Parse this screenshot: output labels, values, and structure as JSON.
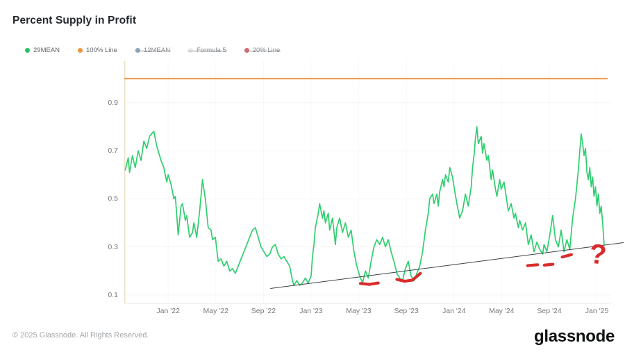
{
  "header": {
    "title": "Percent Supply in Profit"
  },
  "legend": {
    "items": [
      {
        "label": "29MEAN",
        "color": "#27c363",
        "active": true
      },
      {
        "label": "100% Line",
        "color": "#f09440",
        "active": true
      },
      {
        "label": "12MEAN",
        "color": "#92a4bd",
        "active": false
      },
      {
        "label": "Formula 5",
        "color": "#ededed",
        "active": false
      },
      {
        "label": "20% Line",
        "color": "#d46a6e",
        "active": false
      }
    ]
  },
  "footer": {
    "copyright": "© 2025 Glassnode. All Rights Reserved.",
    "brand": "glassnode"
  },
  "colors": {
    "series_green": "#2fce6f",
    "line_orange": "#f09440",
    "annotation_red": "#d92c2c",
    "trendline": "#3c4043",
    "axis_line_beige": "#f2e4c4",
    "grid": "#f4f4f4",
    "axis_bottom": "#e7e7e7"
  },
  "chart_data": {
    "type": "line",
    "title": "Percent Supply in Profit",
    "xlabel": "",
    "ylabel": "",
    "grid": true,
    "legend_position": "top-left",
    "x_axis": {
      "range": [
        2021.693,
        2025.075
      ],
      "ticks": [
        {
          "label": "Jan '22",
          "t": 2022.0
        },
        {
          "label": "May '22",
          "t": 2022.333
        },
        {
          "label": "Sep '22",
          "t": 2022.667
        },
        {
          "label": "Jan '23",
          "t": 2023.0
        },
        {
          "label": "May '23",
          "t": 2023.333
        },
        {
          "label": "Sep '23",
          "t": 2023.667
        },
        {
          "label": "Jan '24",
          "t": 2024.0
        },
        {
          "label": "May '24",
          "t": 2024.333
        },
        {
          "label": "Sep '24",
          "t": 2024.667
        },
        {
          "label": "Jan '25",
          "t": 2025.0
        }
      ]
    },
    "y_axis": {
      "range": [
        0.065,
        1.073
      ],
      "ticks": [
        0.1,
        0.3,
        0.5,
        0.7,
        0.9
      ]
    },
    "series": [
      {
        "name": "29MEAN",
        "color": "#2fce6f",
        "visible": true,
        "points": [
          [
            2021.7,
            0.62
          ],
          [
            2021.72,
            0.67
          ],
          [
            2021.73,
            0.61
          ],
          [
            2021.75,
            0.68
          ],
          [
            2021.77,
            0.63
          ],
          [
            2021.79,
            0.7
          ],
          [
            2021.81,
            0.66
          ],
          [
            2021.83,
            0.74
          ],
          [
            2021.85,
            0.71
          ],
          [
            2021.87,
            0.76
          ],
          [
            2021.89,
            0.775
          ],
          [
            2021.9,
            0.78
          ],
          [
            2021.92,
            0.72
          ],
          [
            2021.94,
            0.68
          ],
          [
            2021.95,
            0.66
          ],
          [
            2021.97,
            0.63
          ],
          [
            2021.99,
            0.57
          ],
          [
            2022.0,
            0.6
          ],
          [
            2022.02,
            0.56
          ],
          [
            2022.04,
            0.5
          ],
          [
            2022.05,
            0.51
          ],
          [
            2022.07,
            0.35
          ],
          [
            2022.09,
            0.47
          ],
          [
            2022.1,
            0.48
          ],
          [
            2022.12,
            0.41
          ],
          [
            2022.13,
            0.43
          ],
          [
            2022.15,
            0.34
          ],
          [
            2022.17,
            0.36
          ],
          [
            2022.18,
            0.4
          ],
          [
            2022.2,
            0.34
          ],
          [
            2022.22,
            0.45
          ],
          [
            2022.24,
            0.58
          ],
          [
            2022.26,
            0.5
          ],
          [
            2022.28,
            0.38
          ],
          [
            2022.3,
            0.37
          ],
          [
            2022.31,
            0.33
          ],
          [
            2022.33,
            0.34
          ],
          [
            2022.35,
            0.24
          ],
          [
            2022.37,
            0.25
          ],
          [
            2022.39,
            0.22
          ],
          [
            2022.41,
            0.24
          ],
          [
            2022.43,
            0.2
          ],
          [
            2022.45,
            0.21
          ],
          [
            2022.47,
            0.19
          ],
          [
            2022.49,
            0.22
          ],
          [
            2022.51,
            0.25
          ],
          [
            2022.53,
            0.28
          ],
          [
            2022.55,
            0.31
          ],
          [
            2022.57,
            0.34
          ],
          [
            2022.59,
            0.37
          ],
          [
            2022.61,
            0.38
          ],
          [
            2022.63,
            0.34
          ],
          [
            2022.65,
            0.3
          ],
          [
            2022.67,
            0.28
          ],
          [
            2022.69,
            0.26
          ],
          [
            2022.71,
            0.27
          ],
          [
            2022.73,
            0.3
          ],
          [
            2022.75,
            0.31
          ],
          [
            2022.77,
            0.27
          ],
          [
            2022.79,
            0.25
          ],
          [
            2022.81,
            0.26
          ],
          [
            2022.83,
            0.24
          ],
          [
            2022.85,
            0.22
          ],
          [
            2022.87,
            0.16
          ],
          [
            2022.88,
            0.14
          ],
          [
            2022.9,
            0.16
          ],
          [
            2022.92,
            0.14
          ],
          [
            2022.94,
            0.15
          ],
          [
            2022.96,
            0.17
          ],
          [
            2022.98,
            0.15
          ],
          [
            2023.0,
            0.18
          ],
          [
            2023.01,
            0.26
          ],
          [
            2023.02,
            0.31
          ],
          [
            2023.03,
            0.38
          ],
          [
            2023.05,
            0.44
          ],
          [
            2023.06,
            0.48
          ],
          [
            2023.08,
            0.42
          ],
          [
            2023.09,
            0.45
          ],
          [
            2023.1,
            0.4
          ],
          [
            2023.12,
            0.44
          ],
          [
            2023.13,
            0.37
          ],
          [
            2023.15,
            0.42
          ],
          [
            2023.17,
            0.31
          ],
          [
            2023.18,
            0.38
          ],
          [
            2023.2,
            0.42
          ],
          [
            2023.22,
            0.36
          ],
          [
            2023.24,
            0.4
          ],
          [
            2023.26,
            0.34
          ],
          [
            2023.28,
            0.37
          ],
          [
            2023.3,
            0.28
          ],
          [
            2023.32,
            0.22
          ],
          [
            2023.34,
            0.18
          ],
          [
            2023.36,
            0.15
          ],
          [
            2023.38,
            0.2
          ],
          [
            2023.4,
            0.17
          ],
          [
            2023.42,
            0.24
          ],
          [
            2023.44,
            0.3
          ],
          [
            2023.46,
            0.33
          ],
          [
            2023.48,
            0.31
          ],
          [
            2023.5,
            0.34
          ],
          [
            2023.52,
            0.3
          ],
          [
            2023.54,
            0.33
          ],
          [
            2023.56,
            0.28
          ],
          [
            2023.58,
            0.24
          ],
          [
            2023.6,
            0.19
          ],
          [
            2023.62,
            0.17
          ],
          [
            2023.64,
            0.16
          ],
          [
            2023.66,
            0.21
          ],
          [
            2023.68,
            0.24
          ],
          [
            2023.7,
            0.18
          ],
          [
            2023.72,
            0.16
          ],
          [
            2023.74,
            0.19
          ],
          [
            2023.76,
            0.22
          ],
          [
            2023.78,
            0.28
          ],
          [
            2023.8,
            0.37
          ],
          [
            2023.82,
            0.44
          ],
          [
            2023.83,
            0.5
          ],
          [
            2023.85,
            0.52
          ],
          [
            2023.86,
            0.48
          ],
          [
            2023.88,
            0.52
          ],
          [
            2023.89,
            0.47
          ],
          [
            2023.9,
            0.53
          ],
          [
            2023.92,
            0.58
          ],
          [
            2023.93,
            0.55
          ],
          [
            2023.94,
            0.6
          ],
          [
            2023.96,
            0.57
          ],
          [
            2023.97,
            0.63
          ],
          [
            2023.99,
            0.59
          ],
          [
            2024.0,
            0.55
          ],
          [
            2024.02,
            0.48
          ],
          [
            2024.04,
            0.42
          ],
          [
            2024.06,
            0.45
          ],
          [
            2024.08,
            0.52
          ],
          [
            2024.1,
            0.47
          ],
          [
            2024.12,
            0.55
          ],
          [
            2024.13,
            0.63
          ],
          [
            2024.14,
            0.68
          ],
          [
            2024.15,
            0.75
          ],
          [
            2024.16,
            0.8
          ],
          [
            2024.17,
            0.73
          ],
          [
            2024.19,
            0.76
          ],
          [
            2024.2,
            0.69
          ],
          [
            2024.21,
            0.73
          ],
          [
            2024.23,
            0.66
          ],
          [
            2024.24,
            0.68
          ],
          [
            2024.26,
            0.58
          ],
          [
            2024.27,
            0.62
          ],
          [
            2024.29,
            0.54
          ],
          [
            2024.3,
            0.51
          ],
          [
            2024.32,
            0.58
          ],
          [
            2024.33,
            0.54
          ],
          [
            2024.35,
            0.57
          ],
          [
            2024.37,
            0.49
          ],
          [
            2024.38,
            0.45
          ],
          [
            2024.4,
            0.48
          ],
          [
            2024.42,
            0.42
          ],
          [
            2024.43,
            0.44
          ],
          [
            2024.45,
            0.38
          ],
          [
            2024.46,
            0.41
          ],
          [
            2024.48,
            0.37
          ],
          [
            2024.5,
            0.4
          ],
          [
            2024.52,
            0.31
          ],
          [
            2024.54,
            0.35
          ],
          [
            2024.56,
            0.28
          ],
          [
            2024.58,
            0.32
          ],
          [
            2024.6,
            0.29
          ],
          [
            2024.62,
            0.27
          ],
          [
            2024.63,
            0.31
          ],
          [
            2024.65,
            0.28
          ],
          [
            2024.67,
            0.35
          ],
          [
            2024.69,
            0.43
          ],
          [
            2024.71,
            0.33
          ],
          [
            2024.73,
            0.3
          ],
          [
            2024.75,
            0.37
          ],
          [
            2024.77,
            0.28
          ],
          [
            2024.79,
            0.33
          ],
          [
            2024.81,
            0.29
          ],
          [
            2024.83,
            0.42
          ],
          [
            2024.85,
            0.5
          ],
          [
            2024.87,
            0.62
          ],
          [
            2024.88,
            0.7
          ],
          [
            2024.89,
            0.77
          ],
          [
            2024.9,
            0.73
          ],
          [
            2024.91,
            0.68
          ],
          [
            2024.92,
            0.71
          ],
          [
            2024.93,
            0.61
          ],
          [
            2024.94,
            0.58
          ],
          [
            2024.95,
            0.63
          ],
          [
            2024.96,
            0.55
          ],
          [
            2024.97,
            0.59
          ],
          [
            2024.98,
            0.51
          ],
          [
            2024.99,
            0.55
          ],
          [
            2025.0,
            0.47
          ],
          [
            2025.01,
            0.52
          ],
          [
            2025.02,
            0.44
          ],
          [
            2025.03,
            0.47
          ],
          [
            2025.04,
            0.4
          ],
          [
            2025.05,
            0.31
          ]
        ]
      },
      {
        "name": "100% Line",
        "color": "#f09440",
        "visible": true,
        "value": 1.0
      },
      {
        "name": "12MEAN",
        "visible": false
      },
      {
        "name": "Formula 5",
        "visible": false
      },
      {
        "name": "20% Line",
        "visible": false
      }
    ],
    "trendline": {
      "color": "#3c4043",
      "points": [
        [
          2022.715,
          0.127
        ],
        [
          2025.187,
          0.318
        ]
      ]
    },
    "annotations": {
      "color": "#d92c2c",
      "marks": [
        {
          "type": "dash",
          "points": [
            [
              2023.345,
              0.148
            ],
            [
              2023.41,
              0.144
            ],
            [
              2023.47,
              0.15
            ]
          ]
        },
        {
          "type": "swoosh",
          "points": [
            [
              2023.6,
              0.165
            ],
            [
              2023.655,
              0.157
            ],
            [
              2023.71,
              0.162
            ],
            [
              2023.765,
              0.19
            ]
          ]
        },
        {
          "type": "dash",
          "points": [
            [
              2024.515,
              0.222
            ],
            [
              2024.585,
              0.226
            ]
          ]
        },
        {
          "type": "dash",
          "points": [
            [
              2024.632,
              0.224
            ],
            [
              2024.692,
              0.228
            ]
          ]
        },
        {
          "type": "dash",
          "points": [
            [
              2024.757,
              0.258
            ],
            [
              2024.822,
              0.268
            ]
          ]
        }
      ],
      "question_mark": {
        "label": "?",
        "t": 2024.955,
        "v": 0.315
      }
    }
  }
}
